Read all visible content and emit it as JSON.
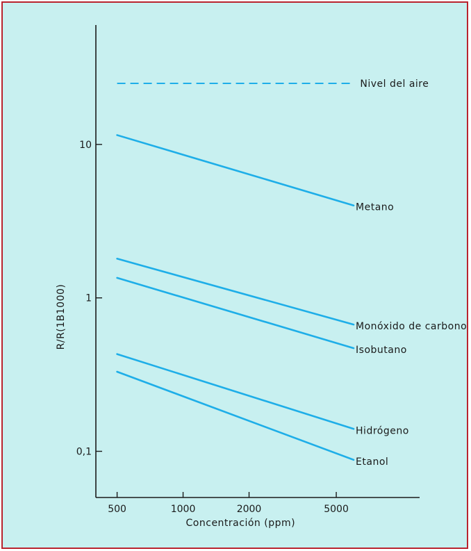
{
  "colors": {
    "background": "#c8f0f0",
    "border": "#b9232e",
    "line": "#1eaee8",
    "axis": "#1a1a1a"
  },
  "chart_data": {
    "type": "line",
    "scale": "log-log",
    "xlabel": "Concentración (ppm)",
    "ylabel": "R/R(1B1000)",
    "x_ticks": [
      500,
      1000,
      2000,
      5000
    ],
    "x_tick_labels": [
      "500",
      "1000",
      "2000",
      "5000"
    ],
    "y_ticks": [
      0.1,
      1,
      10
    ],
    "y_tick_labels": [
      "0,1",
      "1",
      "10"
    ],
    "xlim": [
      400,
      12000
    ],
    "ylim": [
      0.05,
      60
    ],
    "grid": false,
    "legend": "none",
    "reference_line": {
      "name": "Nivel del aire",
      "y": 25,
      "style": "dashed"
    },
    "series": [
      {
        "name": "Metano",
        "x": [
          500,
          6000
        ],
        "y": [
          11.5,
          4.0
        ]
      },
      {
        "name": "Monóxido de carbono",
        "x": [
          500,
          6000
        ],
        "y": [
          1.8,
          0.67
        ]
      },
      {
        "name": "Isobutano",
        "x": [
          500,
          6000
        ],
        "y": [
          1.35,
          0.47
        ]
      },
      {
        "name": "Hidrógeno",
        "x": [
          500,
          6000
        ],
        "y": [
          0.43,
          0.14
        ]
      },
      {
        "name": "Etanol",
        "x": [
          500,
          6000
        ],
        "y": [
          0.33,
          0.088
        ]
      }
    ]
  }
}
